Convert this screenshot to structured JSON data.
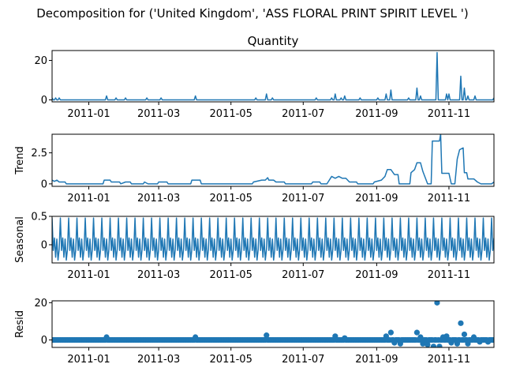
{
  "figure_title": "Decomposition for ('United Kingdom', 'ASS FLORAL PRINT SPIRIT LEVEL ')",
  "series_color": "#1f77b4",
  "chart_data": [
    {
      "type": "line",
      "title": "Quantity",
      "ylabel": "",
      "xlim": [
        "2010-12-01",
        "2011-12-09"
      ],
      "ylim": [
        -1,
        25
      ],
      "yticks": [
        0,
        20
      ],
      "xticks": [
        "2011-01",
        "2011-03",
        "2011-05",
        "2011-07",
        "2011-09",
        "2011-11"
      ],
      "baseline": 0,
      "spikes": [
        {
          "x": "2010-12-01",
          "y": 1
        },
        {
          "x": "2010-12-04",
          "y": 1
        },
        {
          "x": "2010-12-07",
          "y": 1
        },
        {
          "x": "2011-01-16",
          "y": 2
        },
        {
          "x": "2011-01-24",
          "y": 1
        },
        {
          "x": "2011-02-01",
          "y": 1
        },
        {
          "x": "2011-02-19",
          "y": 1
        },
        {
          "x": "2011-03-03",
          "y": 1
        },
        {
          "x": "2011-04-01",
          "y": 2
        },
        {
          "x": "2011-05-22",
          "y": 1
        },
        {
          "x": "2011-05-31",
          "y": 3
        },
        {
          "x": "2011-06-05",
          "y": 1
        },
        {
          "x": "2011-07-12",
          "y": 1
        },
        {
          "x": "2011-07-25",
          "y": 1
        },
        {
          "x": "2011-07-28",
          "y": 3
        },
        {
          "x": "2011-08-02",
          "y": 1
        },
        {
          "x": "2011-08-05",
          "y": 2
        },
        {
          "x": "2011-08-18",
          "y": 1
        },
        {
          "x": "2011-09-02",
          "y": 1
        },
        {
          "x": "2011-09-09",
          "y": 3
        },
        {
          "x": "2011-09-13",
          "y": 5
        },
        {
          "x": "2011-09-28",
          "y": 1
        },
        {
          "x": "2011-10-05",
          "y": 6
        },
        {
          "x": "2011-10-08",
          "y": 2
        },
        {
          "x": "2011-10-22",
          "y": 24
        },
        {
          "x": "2011-10-30",
          "y": 3
        },
        {
          "x": "2011-11-01",
          "y": 3
        },
        {
          "x": "2011-11-11",
          "y": 12
        },
        {
          "x": "2011-11-14",
          "y": 6
        },
        {
          "x": "2011-11-17",
          "y": 2
        },
        {
          "x": "2011-11-23",
          "y": 2
        },
        {
          "x": "2011-12-09",
          "y": 1
        }
      ]
    },
    {
      "type": "line",
      "title": "",
      "ylabel": "Trend",
      "xlim": [
        "2010-12-01",
        "2011-12-09"
      ],
      "ylim": [
        -0.2,
        4.0
      ],
      "yticks": [
        0.0,
        2.5
      ],
      "xticks": [
        "2011-01",
        "2011-03",
        "2011-05",
        "2011-07",
        "2011-09",
        "2011-11"
      ],
      "points": [
        {
          "x": "2010-12-01",
          "y": 0.3
        },
        {
          "x": "2010-12-03",
          "y": 0.2
        },
        {
          "x": "2010-12-05",
          "y": 0.3
        },
        {
          "x": "2010-12-07",
          "y": 0.15
        },
        {
          "x": "2010-12-12",
          "y": 0.15
        },
        {
          "x": "2010-12-13",
          "y": 0.0
        },
        {
          "x": "2011-01-13",
          "y": 0.0
        },
        {
          "x": "2011-01-14",
          "y": 0.3
        },
        {
          "x": "2011-01-19",
          "y": 0.3
        },
        {
          "x": "2011-01-20",
          "y": 0.15
        },
        {
          "x": "2011-01-27",
          "y": 0.15
        },
        {
          "x": "2011-01-28",
          "y": 0.0
        },
        {
          "x": "2011-02-01",
          "y": 0.15
        },
        {
          "x": "2011-02-05",
          "y": 0.15
        },
        {
          "x": "2011-02-06",
          "y": 0.0
        },
        {
          "x": "2011-02-16",
          "y": 0.0
        },
        {
          "x": "2011-02-17",
          "y": 0.15
        },
        {
          "x": "2011-02-20",
          "y": 0.0
        },
        {
          "x": "2011-02-28",
          "y": 0.0
        },
        {
          "x": "2011-03-01",
          "y": 0.15
        },
        {
          "x": "2011-03-08",
          "y": 0.15
        },
        {
          "x": "2011-03-09",
          "y": 0.0
        },
        {
          "x": "2011-03-28",
          "y": 0.0
        },
        {
          "x": "2011-03-29",
          "y": 0.3
        },
        {
          "x": "2011-04-05",
          "y": 0.3
        },
        {
          "x": "2011-04-06",
          "y": 0.0
        },
        {
          "x": "2011-05-19",
          "y": 0.0
        },
        {
          "x": "2011-05-20",
          "y": 0.15
        },
        {
          "x": "2011-05-27",
          "y": 0.3
        },
        {
          "x": "2011-05-30",
          "y": 0.3
        },
        {
          "x": "2011-06-01",
          "y": 0.5
        },
        {
          "x": "2011-06-02",
          "y": 0.3
        },
        {
          "x": "2011-06-06",
          "y": 0.3
        },
        {
          "x": "2011-06-08",
          "y": 0.15
        },
        {
          "x": "2011-06-15",
          "y": 0.15
        },
        {
          "x": "2011-06-16",
          "y": 0.0
        },
        {
          "x": "2011-07-08",
          "y": 0.0
        },
        {
          "x": "2011-07-09",
          "y": 0.15
        },
        {
          "x": "2011-07-15",
          "y": 0.15
        },
        {
          "x": "2011-07-16",
          "y": 0.0
        },
        {
          "x": "2011-07-21",
          "y": 0.0
        },
        {
          "x": "2011-07-22",
          "y": 0.15
        },
        {
          "x": "2011-07-25",
          "y": 0.6
        },
        {
          "x": "2011-07-28",
          "y": 0.45
        },
        {
          "x": "2011-07-31",
          "y": 0.6
        },
        {
          "x": "2011-08-03",
          "y": 0.45
        },
        {
          "x": "2011-08-06",
          "y": 0.45
        },
        {
          "x": "2011-08-09",
          "y": 0.15
        },
        {
          "x": "2011-08-15",
          "y": 0.15
        },
        {
          "x": "2011-08-16",
          "y": 0.0
        },
        {
          "x": "2011-08-29",
          "y": 0.0
        },
        {
          "x": "2011-08-30",
          "y": 0.15
        },
        {
          "x": "2011-09-05",
          "y": 0.3
        },
        {
          "x": "2011-09-08",
          "y": 0.6
        },
        {
          "x": "2011-09-10",
          "y": 1.15
        },
        {
          "x": "2011-09-13",
          "y": 1.15
        },
        {
          "x": "2011-09-16",
          "y": 0.75
        },
        {
          "x": "2011-09-19",
          "y": 0.75
        },
        {
          "x": "2011-09-20",
          "y": 0.0
        },
        {
          "x": "2011-09-29",
          "y": 0.0
        },
        {
          "x": "2011-09-30",
          "y": 0.9
        },
        {
          "x": "2011-10-03",
          "y": 1.15
        },
        {
          "x": "2011-10-05",
          "y": 1.7
        },
        {
          "x": "2011-10-08",
          "y": 1.7
        },
        {
          "x": "2011-10-10",
          "y": 1.0
        },
        {
          "x": "2011-10-14",
          "y": 0.0
        },
        {
          "x": "2011-10-17",
          "y": 0.0
        },
        {
          "x": "2011-10-18",
          "y": 3.45
        },
        {
          "x": "2011-10-24",
          "y": 3.45
        },
        {
          "x": "2011-10-25",
          "y": 4.0
        },
        {
          "x": "2011-10-26",
          "y": 0.85
        },
        {
          "x": "2011-11-01",
          "y": 0.85
        },
        {
          "x": "2011-11-03",
          "y": 0.0
        },
        {
          "x": "2011-11-06",
          "y": 0.0
        },
        {
          "x": "2011-11-08",
          "y": 2.0
        },
        {
          "x": "2011-11-10",
          "y": 2.75
        },
        {
          "x": "2011-11-13",
          "y": 2.9
        },
        {
          "x": "2011-11-14",
          "y": 0.9
        },
        {
          "x": "2011-11-16",
          "y": 0.9
        },
        {
          "x": "2011-11-17",
          "y": 0.4
        },
        {
          "x": "2011-11-22",
          "y": 0.4
        },
        {
          "x": "2011-11-25",
          "y": 0.15
        },
        {
          "x": "2011-11-28",
          "y": 0.0
        },
        {
          "x": "2011-12-07",
          "y": 0.0
        },
        {
          "x": "2011-12-09",
          "y": 0.15
        }
      ]
    },
    {
      "type": "line",
      "title": "",
      "ylabel": "Seasonal",
      "xlim": [
        "2010-12-01",
        "2011-12-09"
      ],
      "ylim": [
        -0.32,
        0.5
      ],
      "yticks": [
        0.0,
        0.5
      ],
      "xticks": [
        "2011-01",
        "2011-03",
        "2011-05",
        "2011-07",
        "2011-09",
        "2011-11"
      ],
      "period_days": 7,
      "pattern": [
        0.47,
        -0.1,
        0.12,
        -0.22,
        0.1,
        -0.27,
        -0.08
      ]
    },
    {
      "type": "scatter",
      "title": "",
      "ylabel": "Resid",
      "xlim": [
        "2010-12-01",
        "2011-12-09"
      ],
      "ylim": [
        -4,
        21
      ],
      "yticks": [
        0,
        20
      ],
      "xticks": [
        "2011-01",
        "2011-03",
        "2011-05",
        "2011-07",
        "2011-09",
        "2011-11"
      ],
      "outliers": [
        {
          "x": "2011-01-16",
          "y": 1.5
        },
        {
          "x": "2011-04-01",
          "y": 1.5
        },
        {
          "x": "2011-05-31",
          "y": 2.5
        },
        {
          "x": "2011-07-28",
          "y": 2.0
        },
        {
          "x": "2011-08-05",
          "y": 1.0
        },
        {
          "x": "2011-09-09",
          "y": 2.0
        },
        {
          "x": "2011-09-13",
          "y": 4.0
        },
        {
          "x": "2011-09-16",
          "y": -1.5
        },
        {
          "x": "2011-09-21",
          "y": -2.0
        },
        {
          "x": "2011-10-05",
          "y": 4.0
        },
        {
          "x": "2011-10-08",
          "y": 1.5
        },
        {
          "x": "2011-10-10",
          "y": -2.0
        },
        {
          "x": "2011-10-14",
          "y": -2.5
        },
        {
          "x": "2011-10-19",
          "y": -3.5
        },
        {
          "x": "2011-10-22",
          "y": 20.0
        },
        {
          "x": "2011-10-24",
          "y": -3.5
        },
        {
          "x": "2011-10-27",
          "y": 1.5
        },
        {
          "x": "2011-10-30",
          "y": 2.0
        },
        {
          "x": "2011-11-03",
          "y": -1.5
        },
        {
          "x": "2011-11-08",
          "y": -2.0
        },
        {
          "x": "2011-11-11",
          "y": 9.0
        },
        {
          "x": "2011-11-14",
          "y": 3.0
        },
        {
          "x": "2011-11-17",
          "y": -2.0
        },
        {
          "x": "2011-11-22",
          "y": 1.5
        },
        {
          "x": "2011-11-27",
          "y": -1.0
        },
        {
          "x": "2011-12-04",
          "y": -1.0
        }
      ]
    }
  ]
}
